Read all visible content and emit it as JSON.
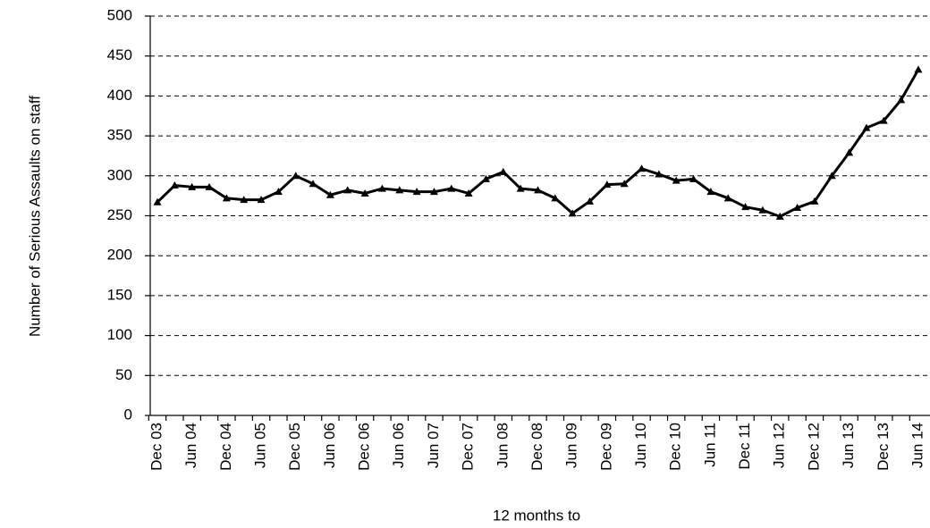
{
  "chart_data": {
    "type": "line",
    "y_label": "Number of Serious Assaults on staff",
    "x_label": "12 months to",
    "categories": [
      "Dec 03",
      null,
      "Jun 04",
      null,
      "Dec 04",
      null,
      "Jun 05",
      null,
      "Dec 05",
      null,
      "Jun 06",
      null,
      "Dec 06",
      null,
      "Jun 06",
      null,
      "Jun 07",
      null,
      "Dec 07",
      null,
      "Jun 08",
      null,
      "Dec 08",
      null,
      "Jun 09",
      null,
      "Dec 09",
      null,
      "Jun 10",
      null,
      "Dec 10",
      null,
      "Jun 11",
      null,
      "Dec 11",
      null,
      "Jun 12",
      null,
      "Dec 12",
      null,
      "Jun 13",
      null,
      "Dec 13",
      null,
      "Jun 14"
    ],
    "series": [
      {
        "name": "Serious Assaults on staff",
        "color": "#000000",
        "values": [
          267,
          288,
          286,
          286,
          272,
          270,
          270,
          280,
          300,
          290,
          276,
          282,
          278,
          284,
          282,
          280,
          280,
          284,
          278,
          296,
          305,
          284,
          282,
          272,
          253,
          268,
          289,
          290,
          309,
          302,
          294,
          296,
          280,
          272,
          261,
          257,
          249,
          260,
          268,
          300,
          329,
          360,
          369,
          395,
          433
        ]
      }
    ],
    "ylim": [
      0,
      500
    ],
    "yticks": [
      0,
      50,
      100,
      150,
      200,
      250,
      300,
      350,
      400,
      450,
      500
    ],
    "grid": true
  }
}
